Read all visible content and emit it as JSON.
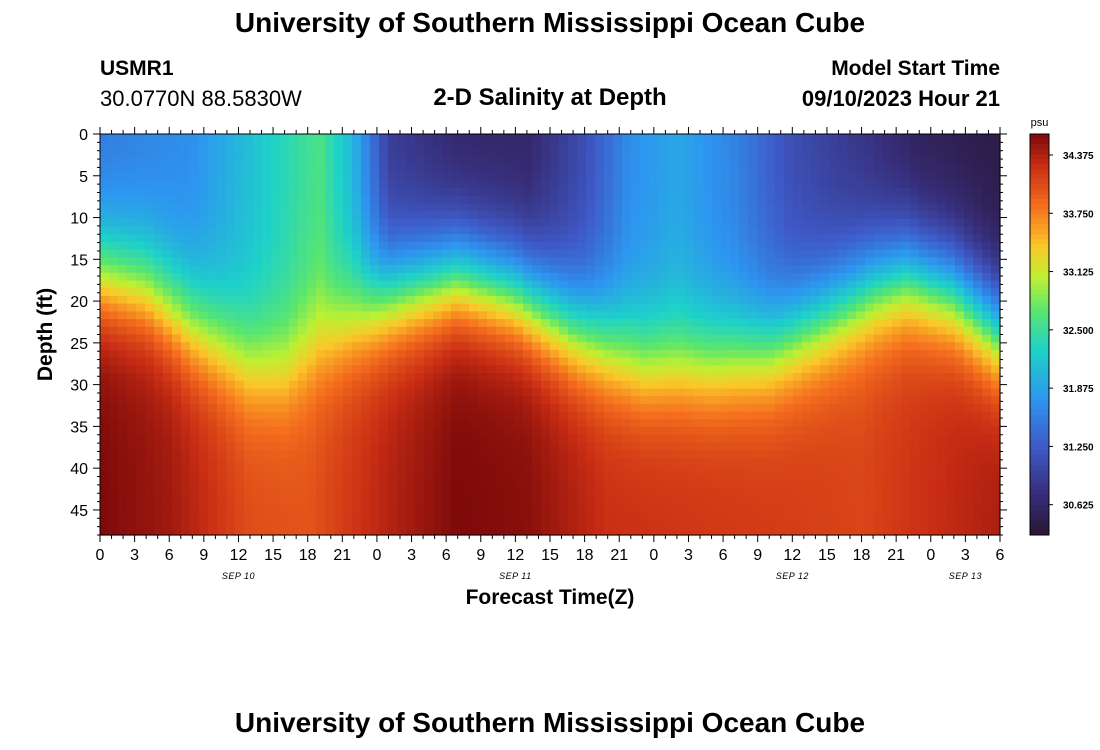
{
  "page": {
    "title_top": "University of Southern Mississippi Ocean Cube",
    "title_bottom": "University of Southern Mississippi Ocean Cube"
  },
  "header": {
    "station_id": "USMR1",
    "station_coords": "30.0770N  88.5830W",
    "subtitle": "2-D Salinity at Depth",
    "model_start_label": "Model Start Time",
    "model_start_value": "09/10/2023 Hour 21"
  },
  "chart_data": {
    "type": "heatmap",
    "title": "2-D Salinity at Depth",
    "xlabel": "Forecast Time(Z)",
    "ylabel": "Depth (ft)",
    "units": "psu",
    "x_range_hours": [
      0,
      78
    ],
    "y_range_ft": [
      0,
      48
    ],
    "x_tick_labels": [
      "0",
      "3",
      "6",
      "9",
      "12",
      "15",
      "18",
      "21",
      "0",
      "3",
      "6",
      "9",
      "12",
      "15",
      "18",
      "21",
      "0",
      "3",
      "6",
      "9",
      "12",
      "15",
      "18",
      "21",
      "0",
      "3",
      "6"
    ],
    "y_tick_labels": [
      "0",
      "5",
      "10",
      "15",
      "20",
      "25",
      "30",
      "35",
      "40",
      "45"
    ],
    "date_labels": [
      {
        "text": "SEP 10",
        "hour": 12
      },
      {
        "text": "SEP 11",
        "hour": 36
      },
      {
        "text": "SEP 12",
        "hour": 60
      },
      {
        "text": "SEP 13",
        "hour": 75
      }
    ],
    "colorbar": {
      "min": 30.3,
      "max": 34.6,
      "tick_labels": [
        "34.375",
        "33.750",
        "33.125",
        "32.500",
        "31.875",
        "31.250",
        "30.625"
      ]
    },
    "halocline_depth_ft": [
      [
        0,
        17
      ],
      [
        4,
        18.5
      ],
      [
        8,
        23
      ],
      [
        13,
        27.5
      ],
      [
        16,
        28
      ],
      [
        20,
        24
      ],
      [
        25,
        19.5
      ],
      [
        31,
        17
      ],
      [
        36,
        19
      ],
      [
        41,
        23.5
      ],
      [
        47,
        27.5
      ],
      [
        53,
        27.5
      ],
      [
        58,
        26
      ],
      [
        63,
        22
      ],
      [
        67,
        18.5
      ],
      [
        70,
        17
      ],
      [
        74,
        19
      ],
      [
        78,
        24
      ]
    ],
    "surface_salinity_psu": [
      [
        0,
        31.5
      ],
      [
        8,
        31.7
      ],
      [
        14,
        32.2
      ],
      [
        19,
        32.6
      ],
      [
        22,
        32.0
      ],
      [
        25,
        30.9
      ],
      [
        31,
        30.6
      ],
      [
        37,
        30.6
      ],
      [
        42,
        31.1
      ],
      [
        46,
        31.7
      ],
      [
        50,
        31.9
      ],
      [
        55,
        31.6
      ],
      [
        60,
        31.1
      ],
      [
        66,
        30.8
      ],
      [
        71,
        30.5
      ],
      [
        78,
        30.4
      ]
    ],
    "bottom_salinity_psu": [
      [
        0,
        34.6
      ],
      [
        6,
        34.45
      ],
      [
        13,
        34.05
      ],
      [
        18,
        34.0
      ],
      [
        25,
        34.35
      ],
      [
        31,
        34.6
      ],
      [
        37,
        34.55
      ],
      [
        44,
        34.25
      ],
      [
        52,
        34.2
      ],
      [
        60,
        34.15
      ],
      [
        66,
        34.1
      ],
      [
        72,
        34.25
      ],
      [
        78,
        34.4
      ]
    ]
  }
}
